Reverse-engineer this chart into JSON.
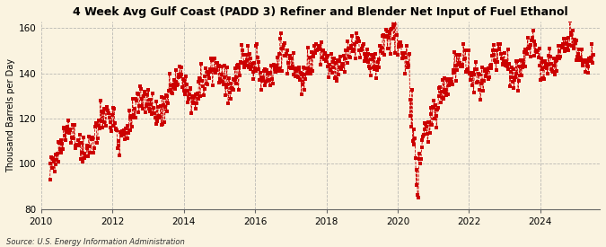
{
  "title": "4 Week Avg Gulf Coast (PADD 3) Refiner and Blender Net Input of Fuel Ethanol",
  "ylabel": "Thousand Barrels per Day",
  "source": "Source: U.S. Energy Information Administration",
  "bg_color": "#FAF3E0",
  "plot_bg_color": "#FAF3E0",
  "line_color": "#CC0000",
  "marker_color": "#CC0000",
  "grid_color": "#AAAAAA",
  "ylim": [
    80,
    163
  ],
  "yticks": [
    80,
    100,
    120,
    140,
    160
  ],
  "xticks": [
    2010,
    2012,
    2014,
    2016,
    2018,
    2020,
    2022,
    2024
  ],
  "title_fontsize": 9.0,
  "ylabel_fontsize": 7.0,
  "tick_fontsize": 7.5
}
